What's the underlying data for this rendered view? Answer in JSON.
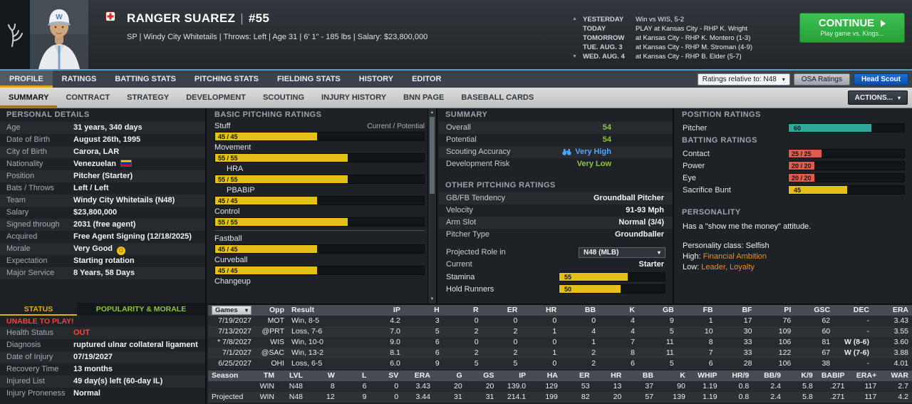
{
  "colors": {
    "accent_blue": "#4da0d8",
    "continue_green": "#2fb344",
    "bar_yellow": "#e3c118",
    "bar_teal": "#2fa89b",
    "bar_red": "#e05a4e",
    "rating_green": "#8dc63f",
    "alert_red": "#ff4136",
    "personality_orange": "#ef8d1d",
    "scout_blue": "#4da6ff"
  },
  "header": {
    "player_name": "RANGER SUAREZ",
    "jersey_number": "#55",
    "player_info": "SP | Windy City Whitetails | Throws: Left | Age 31 | 6' 1\" - 185 lbs | Salary: $23,800,000",
    "schedule": [
      {
        "day": "YESTERDAY",
        "detail": "Win vs WIS, 5-2"
      },
      {
        "day": "TODAY",
        "detail": "PLAY at Kansas City - RHP K. Wright"
      },
      {
        "day": "TOMORROW",
        "detail": "at Kansas City - RHP K. Montero (1-3)"
      },
      {
        "day": "TUE. AUG. 3",
        "detail": "at Kansas City - RHP M. Stroman (4-9)"
      },
      {
        "day": "WED. AUG. 4",
        "detail": "at Kansas City - RHP B. Elder (5-7)"
      }
    ],
    "continue_button": {
      "label": "CONTINUE",
      "sub_label": "Play game vs. Kings..."
    }
  },
  "main_tabs": {
    "items": [
      "PROFILE",
      "RATINGS",
      "BATTING STATS",
      "PITCHING STATS",
      "FIELDING STATS",
      "HISTORY",
      "EDITOR"
    ],
    "active": "PROFILE",
    "ratings_relative": "Ratings relative to: N48",
    "osa_button": "OSA Ratings",
    "head_scout_button": "Head Scout"
  },
  "sub_tabs": {
    "items": [
      "SUMMARY",
      "CONTRACT",
      "STRATEGY",
      "DEVELOPMENT",
      "SCOUTING",
      "INJURY HISTORY",
      "BNN PAGE",
      "BASEBALL CARDS"
    ],
    "active": "SUMMARY",
    "actions_button": "ACTIONS..."
  },
  "personal_details": {
    "title": "PERSONAL DETAILS",
    "rows": [
      {
        "label": "Age",
        "value": "31 years, 340 days"
      },
      {
        "label": "Date of Birth",
        "value": "August 26th, 1995"
      },
      {
        "label": "City of Birth",
        "value": "Carora, LAR"
      },
      {
        "label": "Nationality",
        "value": "Venezuelan",
        "flag": true
      },
      {
        "label": "Position",
        "value": "Pitcher (Starter)"
      },
      {
        "label": "Bats / Throws",
        "value": "Left / Left"
      },
      {
        "label": "Team",
        "value": "Windy City Whitetails (N48)"
      },
      {
        "label": "Salary",
        "value": "$23,800,000"
      },
      {
        "label": "Signed through",
        "value": "2031 (free agent)"
      },
      {
        "label": "Acquired",
        "value": "Free Agent Signing (12/18/2025)"
      },
      {
        "label": "Morale",
        "value": "Very Good",
        "emoji": true
      },
      {
        "label": "Expectation",
        "value": "Starting rotation"
      },
      {
        "label": "Major Service",
        "value": "8 Years, 58 Days"
      }
    ]
  },
  "status_panel": {
    "tabs": [
      "STATUS",
      "POPULARITY & MORALE"
    ],
    "active": "STATUS",
    "alert": "UNABLE TO PLAY!",
    "rows": [
      {
        "label": "Health Status",
        "value": "OUT",
        "red": true
      },
      {
        "label": "Diagnosis",
        "value": "ruptured ulnar collateral ligament"
      },
      {
        "label": "Date of Injury",
        "value": "07/19/2027"
      },
      {
        "label": "Recovery Time",
        "value": "13 months"
      },
      {
        "label": "Injured List",
        "value": "49 day(s) left (60-day IL)"
      },
      {
        "label": "Injury Proneness",
        "value": "Normal"
      }
    ]
  },
  "basic_pitching": {
    "title": "BASIC PITCHING RATINGS",
    "scale_note": "Current / Potential",
    "ratings": [
      {
        "label": "Stuff",
        "text": "45 / 45",
        "value": 45,
        "color": "yellow"
      },
      {
        "label": "Movement",
        "text": "55 / 55",
        "value": 55,
        "color": "yellow"
      },
      {
        "label": "HRA",
        "text": "55 / 55",
        "value": 55,
        "color": "yellow",
        "indent": true
      },
      {
        "label": "PBABIP",
        "text": "45 / 45",
        "value": 45,
        "color": "yellow",
        "indent": true
      },
      {
        "label": "Control",
        "text": "55 / 55",
        "value": 55,
        "color": "yellow"
      },
      {
        "label": "Fastball",
        "text": "45 / 45",
        "value": 45,
        "color": "yellow",
        "divider_before": true
      },
      {
        "label": "Curveball",
        "text": "45 / 45",
        "value": 45,
        "color": "yellow"
      },
      {
        "label": "Changeup"
      }
    ]
  },
  "summary_panel": {
    "title": "SUMMARY",
    "rows": [
      {
        "label": "Overall",
        "value": "54",
        "style": "green"
      },
      {
        "label": "Potential",
        "value": "54",
        "style": "green"
      },
      {
        "label": "Scouting Accuracy",
        "value": "Very High",
        "style": "blue",
        "icon": "binoculars-icon"
      },
      {
        "label": "Development Risk",
        "value": "Very Low",
        "style": "green"
      }
    ]
  },
  "other_pitching": {
    "title": "OTHER PITCHING RATINGS",
    "rows": [
      {
        "label": "GB/FB Tendency",
        "value": "Groundball Pitcher"
      },
      {
        "label": "Velocity",
        "value": "91-93 Mph"
      },
      {
        "label": "Arm Slot",
        "value": "Normal (3/4)"
      },
      {
        "label": "Pitcher Type",
        "value": "Groundballer"
      }
    ],
    "projected_role": {
      "label": "Projected Role in",
      "value": "N48 (MLB)"
    },
    "current": {
      "label": "Current",
      "value": "Starter"
    },
    "bars": [
      {
        "label": "Stamina",
        "text": "55",
        "value": 55,
        "color": "yellow"
      },
      {
        "label": "Hold Runners",
        "text": "50",
        "value": 50,
        "color": "yellow"
      }
    ]
  },
  "position_ratings": {
    "title": "POSITION RATINGS",
    "bars": [
      {
        "label": "Pitcher",
        "text": "60",
        "value": 60,
        "color": "teal"
      }
    ]
  },
  "batting_ratings": {
    "title": "BATTING RATINGS",
    "bars": [
      {
        "label": "Contact",
        "text": "25 / 25",
        "value": 25,
        "color": "red"
      },
      {
        "label": "Power",
        "text": "20 / 20",
        "value": 20,
        "color": "red"
      },
      {
        "label": "Eye",
        "text": "20 / 20",
        "value": 20,
        "color": "red"
      },
      {
        "label": "Sacrifice Bunt",
        "text": "45",
        "value": 45,
        "color": "yellow"
      }
    ]
  },
  "personality": {
    "title": "PERSONALITY",
    "attitude": "Has a \"show me the money\" attitude.",
    "lines": [
      {
        "prefix": "Personality class:",
        "value": "Selfish",
        "highlight": false
      },
      {
        "prefix": "High:",
        "value": "Financial Ambition",
        "highlight": true
      },
      {
        "prefix": "Low:",
        "value": "Leader, Loyalty",
        "highlight": true
      }
    ]
  },
  "games_log": {
    "columns": [
      "Games",
      "Opp",
      "Result",
      "IP",
      "H",
      "R",
      "ER",
      "HR",
      "BB",
      "K",
      "GB",
      "FB",
      "BF",
      "PI",
      "GSC",
      "DEC",
      "ERA"
    ],
    "rows": [
      [
        "7/19/2027",
        "MOT",
        "Win, 8-5",
        "4.2",
        "3",
        "0",
        "0",
        "0",
        "0",
        "4",
        "9",
        "1",
        "17",
        "76",
        "62",
        "-",
        "3.43"
      ],
      [
        "7/13/2027",
        "@PRT",
        "Loss, 7-6",
        "7.0",
        "5",
        "2",
        "2",
        "1",
        "4",
        "4",
        "5",
        "10",
        "30",
        "109",
        "60",
        "-",
        "3.55"
      ],
      [
        "* 7/8/2027",
        "WIS",
        "Win, 10-0",
        "9.0",
        "6",
        "0",
        "0",
        "0",
        "1",
        "7",
        "11",
        "8",
        "33",
        "106",
        "81",
        "W (8-6)",
        "3.60"
      ],
      [
        "7/1/2027",
        "@SAC",
        "Win, 13-2",
        "8.1",
        "6",
        "2",
        "2",
        "1",
        "2",
        "8",
        "11",
        "7",
        "33",
        "122",
        "67",
        "W (7-6)",
        "3.88"
      ],
      [
        "6/25/2027",
        "OHI",
        "Loss, 6-5",
        "6.0",
        "9",
        "5",
        "5",
        "0",
        "2",
        "6",
        "5",
        "6",
        "28",
        "106",
        "38",
        "-",
        "4.01"
      ]
    ]
  },
  "season_stats": {
    "columns": [
      "Season",
      "TM",
      "LVL",
      "W",
      "L",
      "SV",
      "ERA",
      "G",
      "GS",
      "IP",
      "HA",
      "ER",
      "HR",
      "BB",
      "K",
      "WHIP",
      "HR/9",
      "BB/9",
      "K/9",
      "BABIP",
      "ERA+",
      "WAR"
    ],
    "rows": [
      [
        "",
        "WIN",
        "N48",
        "8",
        "6",
        "0",
        "3.43",
        "20",
        "20",
        "139.0",
        "129",
        "53",
        "13",
        "37",
        "90",
        "1.19",
        "0.8",
        "2.4",
        "5.8",
        ".271",
        "117",
        "2.7"
      ],
      [
        "Projected",
        "WIN",
        "N48",
        "12",
        "9",
        "0",
        "3.44",
        "31",
        "31",
        "214.1",
        "199",
        "82",
        "20",
        "57",
        "139",
        "1.19",
        "0.8",
        "2.4",
        "5.8",
        ".271",
        "117",
        "4.2"
      ]
    ]
  }
}
